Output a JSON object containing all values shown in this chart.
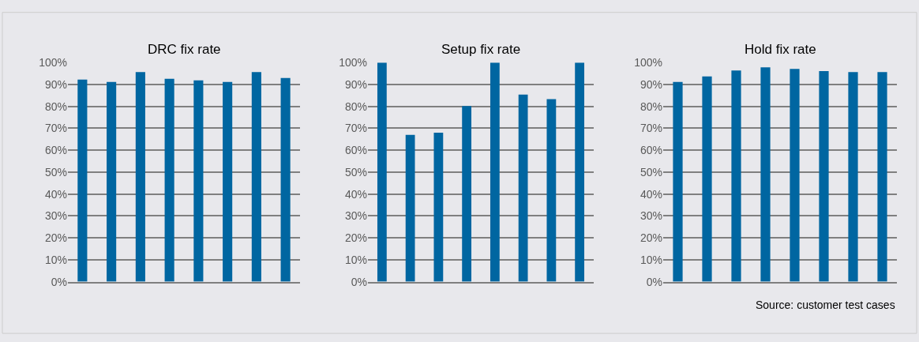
{
  "chart_data": [
    {
      "type": "bar",
      "title": "DRC fix rate",
      "categories": [
        null,
        null,
        null,
        null,
        null,
        null,
        null,
        null
      ],
      "values": [
        92.3,
        91.2,
        95.7,
        92.6,
        91.9,
        91.2,
        95.7,
        93.0
      ],
      "color": "#0066a1",
      "ylim": [
        0,
        100
      ],
      "yticks": [
        {
          "value": 0,
          "label": "0%"
        },
        {
          "value": 10,
          "label": "10%"
        },
        {
          "value": 20,
          "label": "20%"
        },
        {
          "value": 30,
          "label": "30%"
        },
        {
          "value": 40,
          "label": "40%"
        },
        {
          "value": 50,
          "label": "50%"
        },
        {
          "value": 60,
          "label": "60%"
        },
        {
          "value": 70,
          "label": "70%"
        },
        {
          "value": 80,
          "label": "80%"
        },
        {
          "value": 90,
          "label": "90%"
        },
        {
          "value": 100,
          "label": "100%"
        }
      ],
      "grid": "y"
    },
    {
      "type": "bar",
      "title": "Setup fix rate",
      "categories": [
        null,
        null,
        null,
        null,
        null,
        null,
        null,
        null
      ],
      "values": [
        100,
        67.0,
        68.0,
        80.2,
        100,
        85.4,
        83.3,
        100
      ],
      "color": "#0066a1",
      "ylim": [
        0,
        100
      ],
      "yticks": [
        {
          "value": 0,
          "label": "0%"
        },
        {
          "value": 10,
          "label": "10%"
        },
        {
          "value": 20,
          "label": "20%"
        },
        {
          "value": 30,
          "label": "30%"
        },
        {
          "value": 40,
          "label": "40%"
        },
        {
          "value": 50,
          "label": "50%"
        },
        {
          "value": 60,
          "label": "60%"
        },
        {
          "value": 70,
          "label": "70%"
        },
        {
          "value": 80,
          "label": "80%"
        },
        {
          "value": 90,
          "label": "90%"
        },
        {
          "value": 100,
          "label": "100%"
        }
      ],
      "grid": "y"
    },
    {
      "type": "bar",
      "title": "Hold fix rate",
      "categories": [
        null,
        null,
        null,
        null,
        null,
        null,
        null,
        null
      ],
      "values": [
        91.2,
        93.7,
        96.4,
        97.8,
        97.1,
        96.1,
        95.7,
        95.7
      ],
      "color": "#0066a1",
      "ylim": [
        0,
        100
      ],
      "yticks": [
        {
          "value": 0,
          "label": "0%"
        },
        {
          "value": 10,
          "label": "10%"
        },
        {
          "value": 20,
          "label": "20%"
        },
        {
          "value": 30,
          "label": "30%"
        },
        {
          "value": 40,
          "label": "40%"
        },
        {
          "value": 50,
          "label": "50%"
        },
        {
          "value": 60,
          "label": "60%"
        },
        {
          "value": 70,
          "label": "70%"
        },
        {
          "value": 80,
          "label": "80%"
        },
        {
          "value": 90,
          "label": "90%"
        },
        {
          "value": 100,
          "label": "100%"
        }
      ],
      "grid": "y",
      "annotations": [
        "Source: customer test cases"
      ]
    }
  ]
}
